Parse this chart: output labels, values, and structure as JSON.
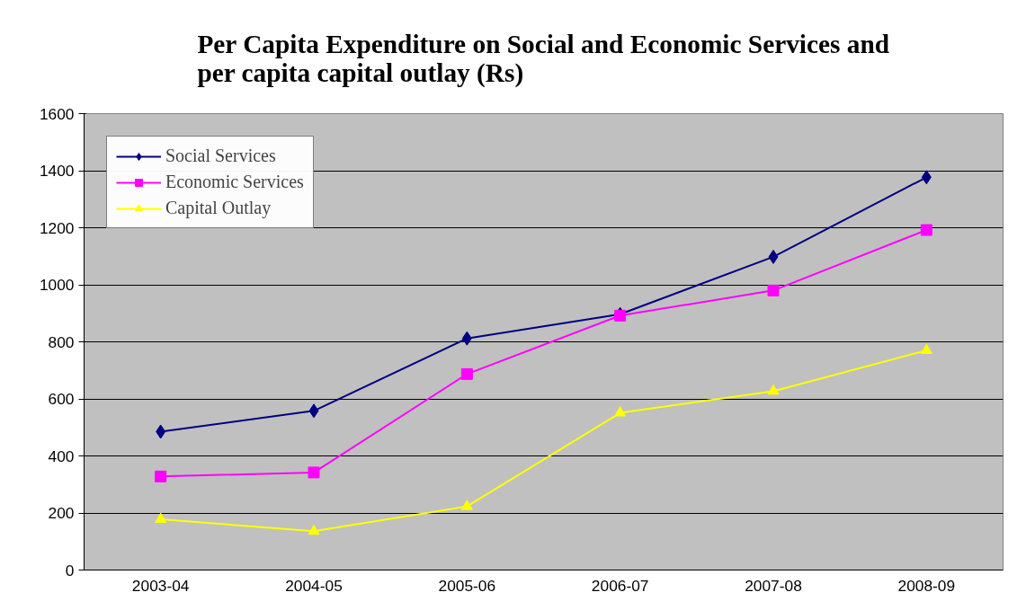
{
  "chart_data": {
    "type": "line",
    "title": "Per Capita Expenditure on Social and Economic Services and per capita capital outlay (Rs)",
    "categories": [
      "2003-04",
      "2004-05",
      "2005-06",
      "2006-07",
      "2007-08",
      "2008-09"
    ],
    "series": [
      {
        "name": "Social Services",
        "color": "#000080",
        "marker": "diamond",
        "values": [
          485,
          558,
          812,
          897,
          1098,
          1377
        ]
      },
      {
        "name": "Economic Services",
        "color": "#ff00ff",
        "marker": "square",
        "values": [
          328,
          342,
          687,
          892,
          980,
          1192
        ]
      },
      {
        "name": "Capital Outlay",
        "color": "#ffff00",
        "marker": "triangle",
        "values": [
          178,
          136,
          223,
          551,
          627,
          770
        ]
      }
    ],
    "ylim": [
      0,
      1600
    ],
    "yticks": [
      0,
      200,
      400,
      600,
      800,
      1000,
      1200,
      1400,
      1600
    ],
    "grid": "y",
    "legend": "top left",
    "line_style": "solid"
  }
}
